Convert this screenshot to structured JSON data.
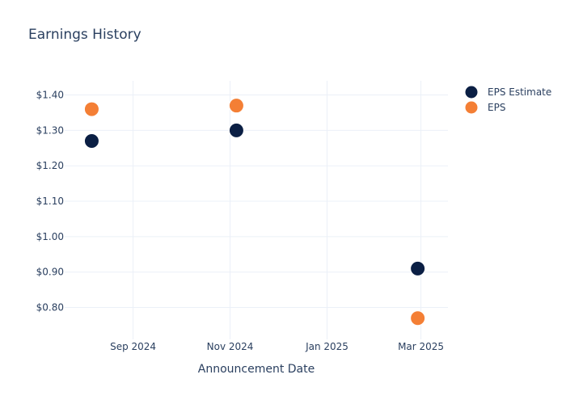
{
  "chart_data": {
    "type": "scatter",
    "title": "Earnings History",
    "xlabel": "Announcement Date",
    "ylabel": "",
    "x_ticks": [
      {
        "date": "2024-09-01",
        "label": "Sep 2024"
      },
      {
        "date": "2024-11-01",
        "label": "Nov 2024"
      },
      {
        "date": "2025-01-01",
        "label": "Jan 2025"
      },
      {
        "date": "2025-03-01",
        "label": "Mar 2025"
      }
    ],
    "y_ticks": [
      {
        "value": 0.8,
        "label": "$0.80"
      },
      {
        "value": 0.9,
        "label": "$0.90"
      },
      {
        "value": 1.0,
        "label": "$1.00"
      },
      {
        "value": 1.1,
        "label": "$1.10"
      },
      {
        "value": 1.2,
        "label": "$1.20"
      },
      {
        "value": 1.3,
        "label": "$1.30"
      },
      {
        "value": 1.4,
        "label": "$1.40"
      }
    ],
    "xlim": [
      "2024-07-20",
      "2025-03-18"
    ],
    "ylim": [
      0.71,
      1.44
    ],
    "grid": true,
    "legend_position": "top-right",
    "series": [
      {
        "name": "EPS Estimate",
        "color": "#0b1f44",
        "points": [
          {
            "x": "2024-08-06",
            "y": 1.27
          },
          {
            "x": "2024-11-05",
            "y": 1.3
          },
          {
            "x": "2025-02-27",
            "y": 0.91
          }
        ]
      },
      {
        "name": "EPS",
        "color": "#f47f35",
        "points": [
          {
            "x": "2024-08-06",
            "y": 1.36
          },
          {
            "x": "2024-11-05",
            "y": 1.37
          },
          {
            "x": "2025-02-27",
            "y": 0.77
          }
        ]
      }
    ]
  }
}
